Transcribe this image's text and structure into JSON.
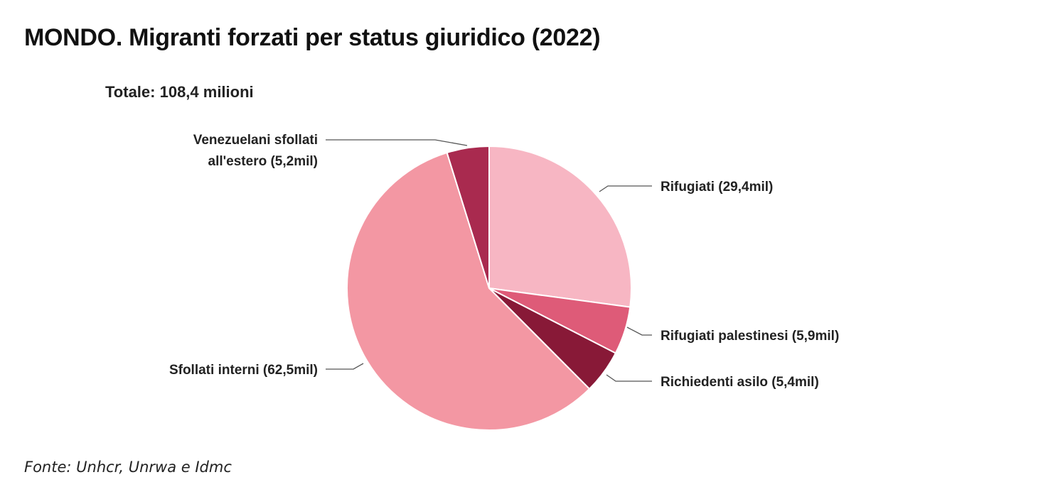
{
  "title": "MONDO. Migranti forzati per status giuridico (2022)",
  "source": "Fonte: Unhcr, Unrwa e Idmc",
  "chart_data": {
    "type": "pie",
    "subtitle": "Totale: 108,4 milioni",
    "unit": "mil",
    "start_angle": "12 o'clock",
    "direction": "clockwise",
    "slices": [
      {
        "label": "Rifugiati (29,4mil)",
        "value": 29.4,
        "color": "#f7b6c3"
      },
      {
        "label": "Rifugiati palestinesi (5,9mil)",
        "value": 5.9,
        "color": "#de5b78"
      },
      {
        "label": "Richiedenti asilo (5,4mil)",
        "value": 5.4,
        "color": "#881937"
      },
      {
        "label": "Sfollati interni (62,5mil)",
        "value": 62.5,
        "color": "#f397a3"
      },
      {
        "label": [
          "Venezuelani sfollati",
          "all'estero (5,2mil)"
        ],
        "value": 5.2,
        "color": "#a92a4f"
      }
    ]
  }
}
